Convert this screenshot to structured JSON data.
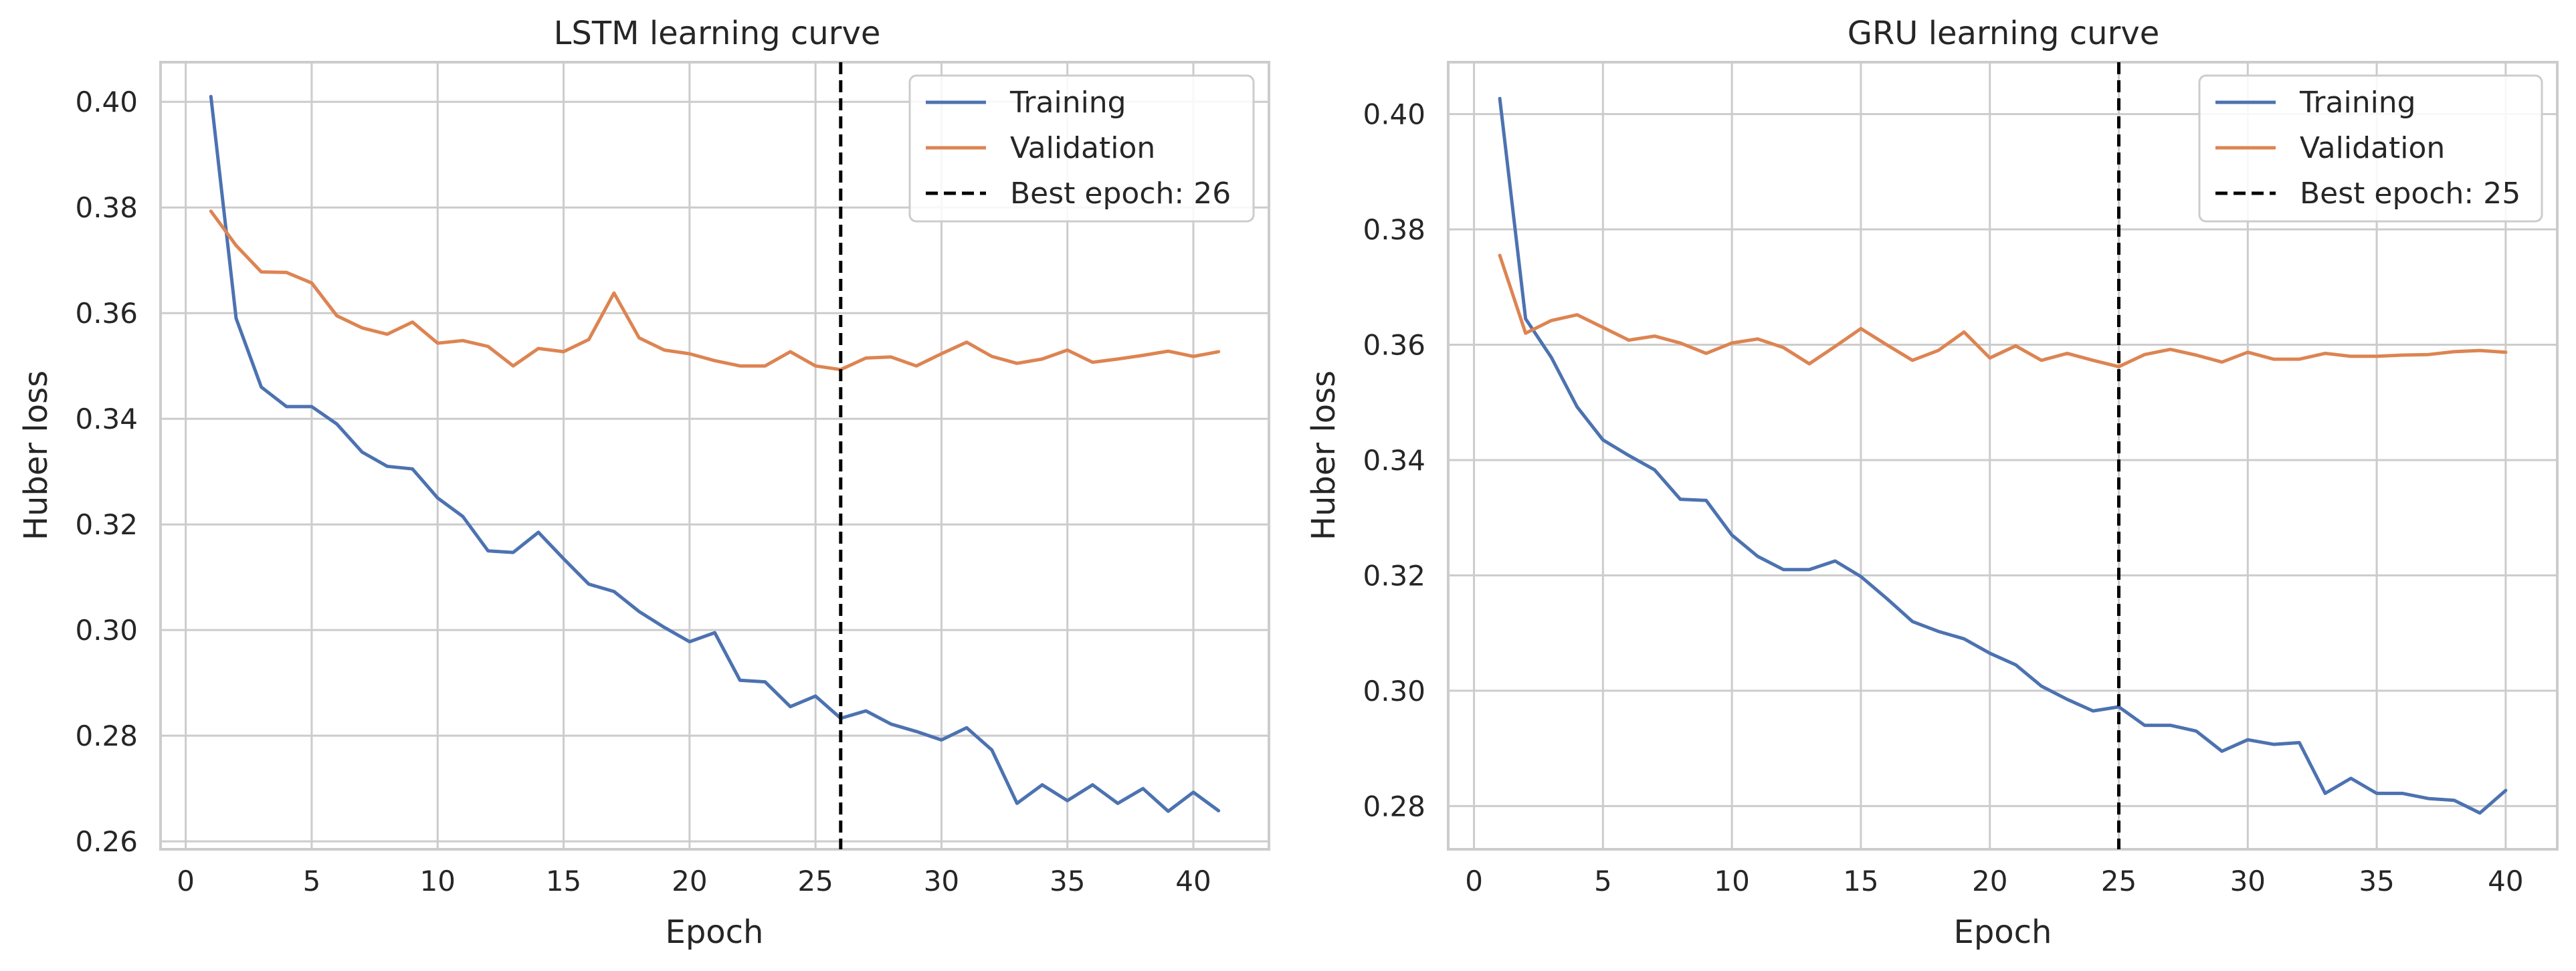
{
  "chart_data": [
    {
      "type": "line",
      "title": "LSTM learning curve",
      "xlabel": "Epoch",
      "ylabel": "Huber loss",
      "xlim": [
        -1,
        43
      ],
      "ylim": [
        0.2585,
        0.4075
      ],
      "xticks": [
        0,
        5,
        10,
        15,
        20,
        25,
        30,
        35,
        40
      ],
      "yticks": [
        0.26,
        0.28,
        0.3,
        0.32,
        0.34,
        0.36,
        0.38,
        0.4
      ],
      "ytick_labels": [
        "0.26",
        "0.28",
        "0.30",
        "0.32",
        "0.34",
        "0.36",
        "0.38",
        "0.40"
      ],
      "grid": true,
      "legend": "top-right",
      "x": [
        1,
        2,
        3,
        4,
        5,
        6,
        7,
        8,
        9,
        10,
        11,
        12,
        13,
        14,
        15,
        16,
        17,
        18,
        19,
        20,
        21,
        22,
        23,
        24,
        25,
        26,
        27,
        28,
        29,
        30,
        31,
        32,
        33,
        34,
        35,
        36,
        37,
        38,
        39,
        40,
        41
      ],
      "series": [
        {
          "name": "Training",
          "color": "#4c72b0",
          "values": [
            0.401,
            0.359,
            0.346,
            0.3423,
            0.3423,
            0.339,
            0.3337,
            0.331,
            0.3305,
            0.325,
            0.3215,
            0.315,
            0.3147,
            0.3185,
            0.3135,
            0.3087,
            0.3073,
            0.3035,
            0.3005,
            0.2978,
            0.2995,
            0.2905,
            0.2902,
            0.2855,
            0.2875,
            0.2833,
            0.2847,
            0.2822,
            0.2808,
            0.2792,
            0.2815,
            0.2773,
            0.2672,
            0.2707,
            0.2677,
            0.2707,
            0.2672,
            0.27,
            0.2657,
            0.2693,
            0.2658
          ]
        },
        {
          "name": "Validation",
          "color": "#dd8452",
          "values": [
            0.3793,
            0.3728,
            0.3678,
            0.3677,
            0.3657,
            0.3595,
            0.3572,
            0.356,
            0.3583,
            0.3543,
            0.3548,
            0.3537,
            0.35,
            0.3533,
            0.3527,
            0.355,
            0.3638,
            0.3553,
            0.353,
            0.3523,
            0.351,
            0.35,
            0.35,
            0.3527,
            0.35,
            0.3493,
            0.3515,
            0.3517,
            0.35,
            0.3523,
            0.3545,
            0.3518,
            0.3505,
            0.3513,
            0.353,
            0.3507,
            0.3513,
            0.352,
            0.3528,
            0.3518,
            0.3527
          ]
        }
      ],
      "vline": {
        "x": 26,
        "name": "Best epoch: 26",
        "color": "#000000"
      }
    },
    {
      "type": "line",
      "title": "GRU learning curve",
      "xlabel": "Epoch",
      "ylabel": "Huber loss",
      "xlim": [
        -1,
        42
      ],
      "ylim": [
        0.2725,
        0.409
      ],
      "xticks": [
        0,
        5,
        10,
        15,
        20,
        25,
        30,
        35,
        40
      ],
      "yticks": [
        0.28,
        0.3,
        0.32,
        0.34,
        0.36,
        0.38,
        0.4
      ],
      "ytick_labels": [
        "0.28",
        "0.30",
        "0.32",
        "0.34",
        "0.36",
        "0.38",
        "0.40"
      ],
      "grid": true,
      "legend": "top-right",
      "x": [
        1,
        2,
        3,
        4,
        5,
        6,
        7,
        8,
        9,
        10,
        11,
        12,
        13,
        14,
        15,
        16,
        17,
        18,
        19,
        20,
        21,
        22,
        23,
        24,
        25,
        26,
        27,
        28,
        29,
        30,
        31,
        32,
        33,
        34,
        35,
        36,
        37,
        38,
        39,
        40
      ],
      "series": [
        {
          "name": "Training",
          "color": "#4c72b0",
          "values": [
            0.4027,
            0.3645,
            0.3578,
            0.3492,
            0.3435,
            0.3408,
            0.3383,
            0.3332,
            0.333,
            0.327,
            0.3233,
            0.321,
            0.321,
            0.3225,
            0.3198,
            0.316,
            0.312,
            0.3103,
            0.309,
            0.3065,
            0.3045,
            0.3008,
            0.2985,
            0.2965,
            0.2972,
            0.294,
            0.294,
            0.293,
            0.2895,
            0.2915,
            0.2907,
            0.291,
            0.2822,
            0.2848,
            0.2822,
            0.2822,
            0.2813,
            0.281,
            0.2788,
            0.2827
          ]
        },
        {
          "name": "Validation",
          "color": "#dd8452",
          "values": [
            0.3755,
            0.362,
            0.3642,
            0.3652,
            0.363,
            0.3608,
            0.3615,
            0.3603,
            0.3585,
            0.3603,
            0.361,
            0.3595,
            0.3567,
            0.3597,
            0.3628,
            0.36,
            0.3573,
            0.359,
            0.3622,
            0.3577,
            0.3598,
            0.3573,
            0.3585,
            0.3573,
            0.3562,
            0.3583,
            0.3592,
            0.3582,
            0.357,
            0.3587,
            0.3575,
            0.3575,
            0.3585,
            0.358,
            0.358,
            0.3582,
            0.3583,
            0.3588,
            0.359,
            0.3587
          ]
        }
      ],
      "vline": {
        "x": 25,
        "name": "Best epoch: 25",
        "color": "#000000"
      }
    }
  ]
}
